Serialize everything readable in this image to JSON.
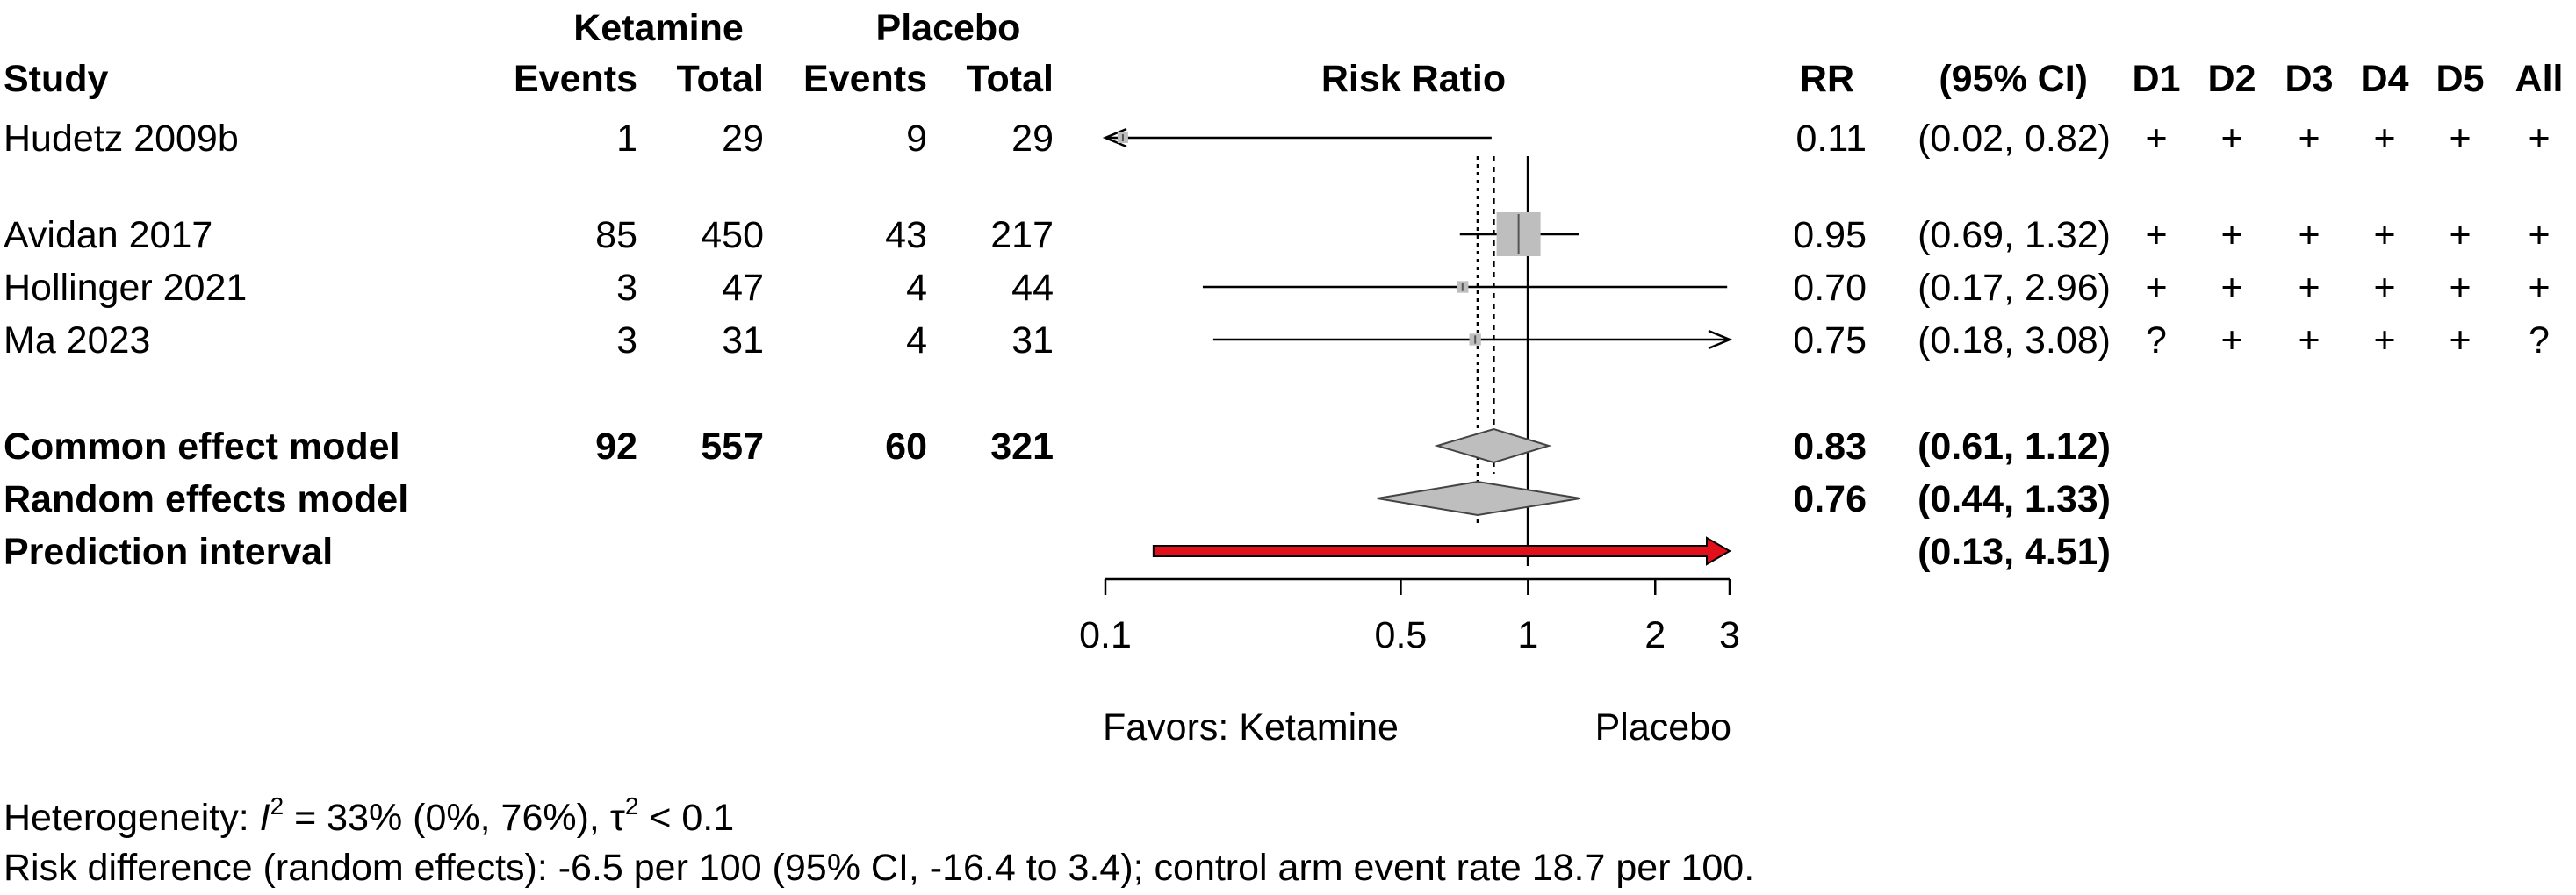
{
  "header": {
    "group1": "Ketamine",
    "group2": "Placebo",
    "study": "Study",
    "events1": "Events",
    "total1": "Total",
    "events2": "Events",
    "total2": "Total",
    "risk_ratio": "Risk Ratio",
    "rr": "RR",
    "ci": "(95% CI)",
    "d1": "D1",
    "d2": "D2",
    "d3": "D3",
    "d4": "D4",
    "d5": "D5",
    "all": "All"
  },
  "studies": [
    {
      "name": "Hudetz 2009b",
      "events1": "1",
      "total1": "29",
      "events2": "9",
      "total2": "29",
      "rr": "0.11",
      "ci": "(0.02, 0.82)",
      "d1": "+",
      "d2": "+",
      "d3": "+",
      "d4": "+",
      "d5": "+",
      "all": "+"
    },
    {
      "name": "Avidan 2017",
      "events1": "85",
      "total1": "450",
      "events2": "43",
      "total2": "217",
      "rr": "0.95",
      "ci": "(0.69, 1.32)",
      "d1": "+",
      "d2": "+",
      "d3": "+",
      "d4": "+",
      "d5": "+",
      "all": "+"
    },
    {
      "name": "Hollinger 2021",
      "events1": "3",
      "total1": "47",
      "events2": "4",
      "total2": "44",
      "rr": "0.70",
      "ci": "(0.17, 2.96)",
      "d1": "+",
      "d2": "+",
      "d3": "+",
      "d4": "+",
      "d5": "+",
      "all": "+"
    },
    {
      "name": "Ma 2023",
      "events1": "3",
      "total1": "31",
      "events2": "4",
      "total2": "31",
      "rr": "0.75",
      "ci": "(0.18, 3.08)",
      "d1": "?",
      "d2": "+",
      "d3": "+",
      "d4": "+",
      "d5": "+",
      "all": "?"
    }
  ],
  "summary": {
    "common": {
      "label": "Common effect model",
      "events1": "92",
      "total1": "557",
      "events2": "60",
      "total2": "321",
      "rr": "0.83",
      "ci": "(0.61, 1.12)"
    },
    "random": {
      "label": "Random effects model",
      "rr": "0.76",
      "ci": "(0.44, 1.33)"
    },
    "prediction": {
      "label": "Prediction interval",
      "ci": "(0.13, 4.51)"
    }
  },
  "axis": {
    "tick_labels": [
      "0.1",
      "0.5",
      "1",
      "2",
      "3"
    ],
    "favors_left": "Favors: Ketamine",
    "favors_right": "Placebo"
  },
  "footer": {
    "het_prefix": "Heterogeneity: ",
    "het_i": "I",
    "het_i_sup": "2",
    "het_mid": " = 33% (0%, 76%), ",
    "het_tau": "τ",
    "het_tau_sup": "2",
    "het_end": " < 0.1",
    "risk_diff": "Risk difference (random effects): -6.5 per 100 (95% CI, -16.4 to 3.4); control arm event rate 18.7 per 100."
  },
  "colors": {
    "square": "#bebebe",
    "diamond": "#bebebe",
    "prediction": "#e3101b",
    "line": "#000000"
  },
  "chart_data": {
    "type": "forest",
    "scale": "log",
    "xlim": [
      0.1,
      3
    ],
    "ticks": [
      0.1,
      0.5,
      1,
      2,
      3
    ],
    "null_value": 1,
    "common_effect": 0.83,
    "random_effect": 0.76,
    "studies": [
      {
        "name": "Hudetz 2009b",
        "rr": 0.11,
        "lower": 0.02,
        "upper": 0.82,
        "weight": 3
      },
      {
        "name": "Avidan 2017",
        "rr": 0.95,
        "lower": 0.69,
        "upper": 1.32,
        "weight": 85
      },
      {
        "name": "Hollinger 2021",
        "rr": 0.7,
        "lower": 0.17,
        "upper": 2.96,
        "weight": 6
      },
      {
        "name": "Ma 2023",
        "rr": 0.75,
        "lower": 0.18,
        "upper": 3.08,
        "weight": 6
      }
    ],
    "diamonds": [
      {
        "name": "Common effect model",
        "rr": 0.83,
        "lower": 0.61,
        "upper": 1.12
      },
      {
        "name": "Random effects model",
        "rr": 0.76,
        "lower": 0.44,
        "upper": 1.33
      }
    ],
    "prediction_interval": {
      "lower": 0.13,
      "upper": 4.51
    }
  }
}
